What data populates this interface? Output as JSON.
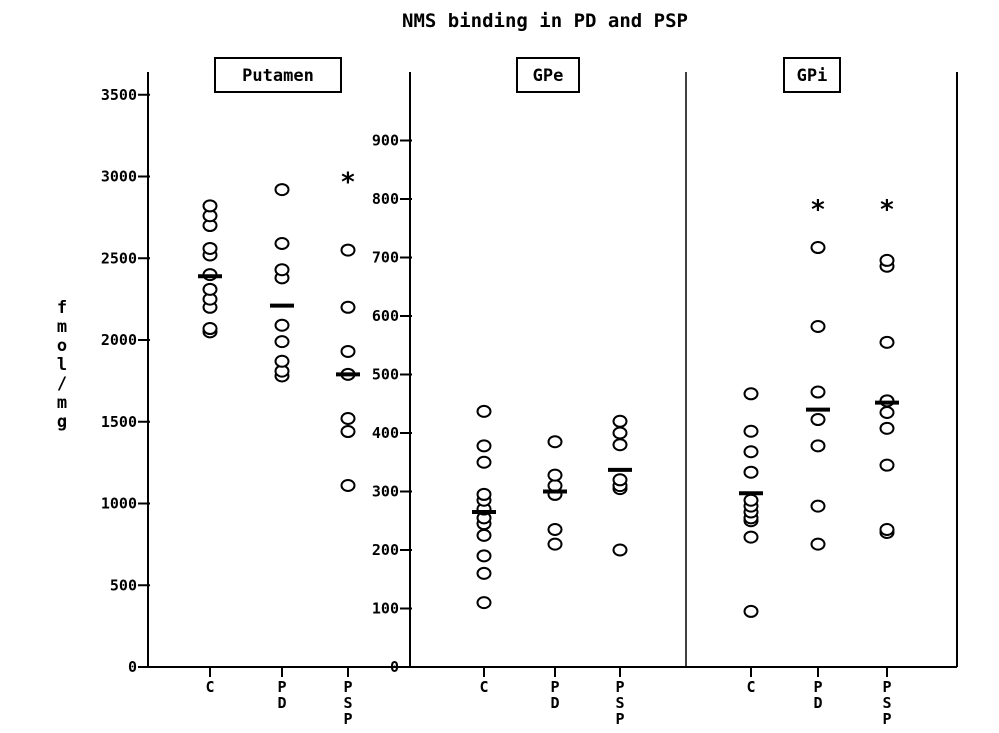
{
  "chart_data": {
    "type": "scatter",
    "title": "NMS binding in PD and PSP",
    "ylabel": "fmol/mg",
    "colors": {
      "axis": "#000000",
      "background": "#ffffff"
    },
    "panels": [
      {
        "name": "Putamen",
        "ylim": [
          0,
          3600
        ],
        "yticks": [
          0,
          500,
          1000,
          1500,
          2000,
          2500,
          3000,
          3500
        ],
        "ytick_labels": [
          "0",
          "500",
          "1000",
          "1500",
          "2000",
          "2500",
          "3000",
          "3500"
        ],
        "categories": [
          "C",
          "PD",
          "PSP"
        ],
        "points": [
          [
            2050,
            2070,
            2200,
            2250,
            2310,
            2400,
            2520,
            2560,
            2700,
            2760,
            2820
          ],
          [
            1780,
            1810,
            1870,
            1990,
            2090,
            2380,
            2430,
            2590,
            2920
          ],
          [
            1110,
            1440,
            1520,
            1790,
            1930,
            2200,
            2550
          ]
        ],
        "means": [
          2390,
          2210,
          1790
        ],
        "significant": [
          false,
          false,
          true
        ]
      },
      {
        "name": "GPe",
        "ylim": [
          0,
          950
        ],
        "yticks": [
          0,
          100,
          200,
          300,
          400,
          500,
          600,
          700,
          800,
          900
        ],
        "ytick_labels": [
          "0",
          "100",
          "200",
          "300",
          "400",
          "500",
          "600",
          "700",
          "800",
          "900"
        ],
        "categories": [
          "C",
          "PD",
          "PSP"
        ],
        "points": [
          [
            110,
            160,
            190,
            225,
            245,
            255,
            270,
            285,
            295,
            350,
            378,
            437
          ],
          [
            210,
            235,
            295,
            310,
            328,
            385
          ],
          [
            200,
            305,
            310,
            320,
            380,
            400,
            420
          ]
        ],
        "means": [
          265,
          300,
          337
        ],
        "significant": [
          false,
          false,
          false
        ]
      },
      {
        "name": "GPi",
        "ylim": [
          0,
          950
        ],
        "categories": [
          "C",
          "PD",
          "PSP"
        ],
        "points": [
          [
            95,
            222,
            250,
            255,
            265,
            275,
            285,
            333,
            368,
            403,
            467
          ],
          [
            210,
            275,
            378,
            423,
            470,
            582,
            717
          ],
          [
            230,
            235,
            345,
            408,
            435,
            455,
            555,
            685,
            695
          ]
        ],
        "means": [
          297,
          440,
          452
        ],
        "significant": [
          false,
          true,
          true
        ]
      }
    ],
    "category_labels": [
      [
        "C"
      ],
      [
        "P",
        "D"
      ],
      [
        "P",
        "S",
        "P"
      ]
    ],
    "significance_marker": "*"
  }
}
